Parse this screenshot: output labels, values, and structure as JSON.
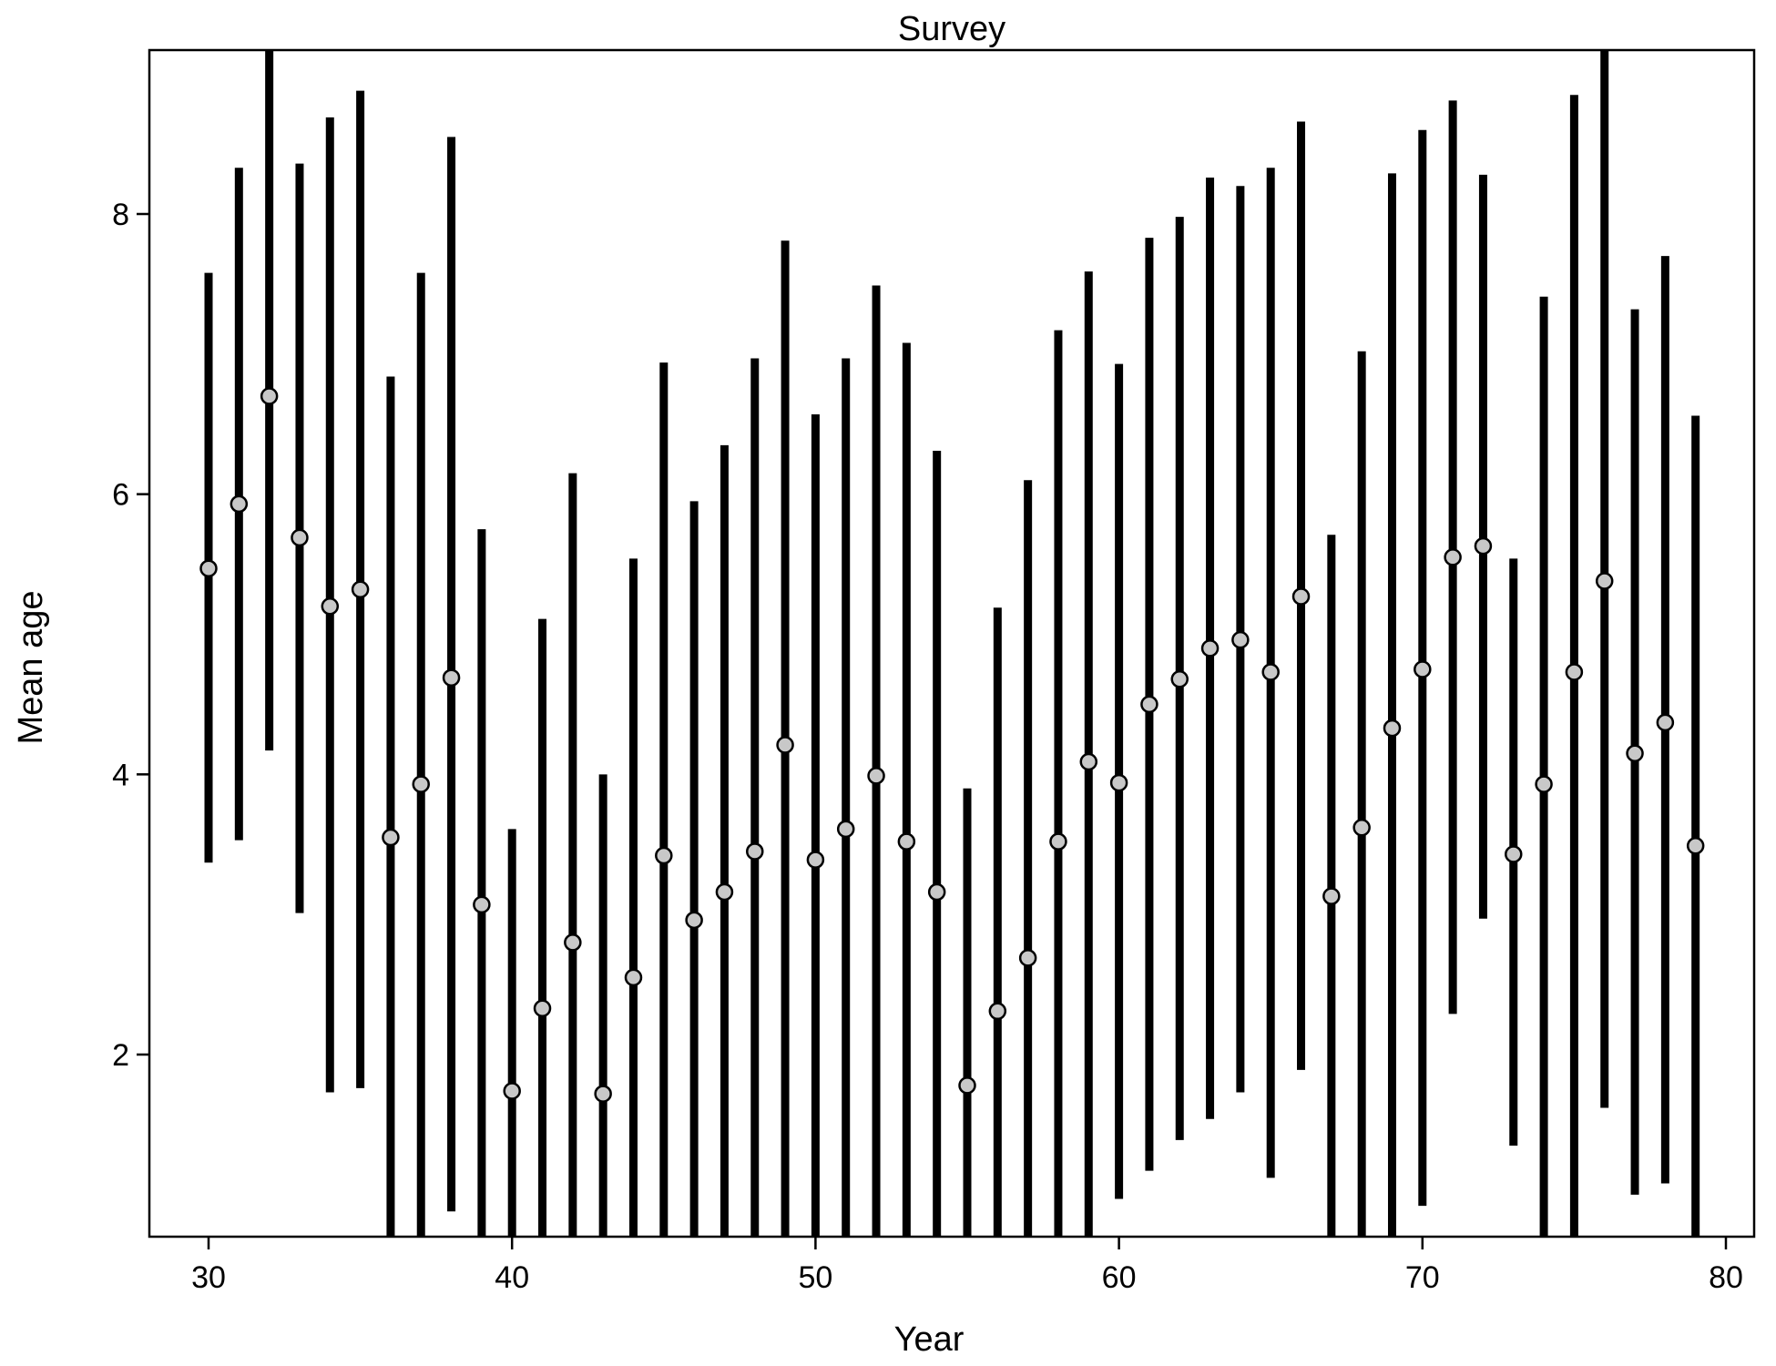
{
  "chart_data": {
    "type": "scatter",
    "title": "Survey",
    "xlabel": "Year",
    "ylabel": "Mean age",
    "xlim": [
      28,
      81
    ],
    "ylim": [
      0.7,
      9.2
    ],
    "x_ticks": [
      30,
      40,
      50,
      60,
      70,
      80
    ],
    "y_ticks": [
      2,
      4,
      6,
      8
    ],
    "grid": false,
    "legend": "none",
    "marker_fill": "#c8c8c8",
    "line_color": "#000000",
    "x": [
      30,
      31,
      32,
      33,
      34,
      35,
      36,
      37,
      38,
      39,
      40,
      41,
      42,
      43,
      44,
      45,
      46,
      47,
      48,
      49,
      50,
      51,
      52,
      53,
      54,
      55,
      56,
      57,
      58,
      59,
      60,
      61,
      62,
      63,
      64,
      65,
      66,
      67,
      68,
      69,
      70,
      71,
      72,
      73,
      74,
      75,
      76,
      77,
      78,
      79
    ],
    "y": [
      5.47,
      5.93,
      6.7,
      5.69,
      5.2,
      5.32,
      3.55,
      3.93,
      4.69,
      3.07,
      1.74,
      2.33,
      2.8,
      1.72,
      2.55,
      3.42,
      2.96,
      3.16,
      3.45,
      4.21,
      3.39,
      3.61,
      3.99,
      3.52,
      3.16,
      1.78,
      2.31,
      2.69,
      3.52,
      4.09,
      3.94,
      4.5,
      4.68,
      4.9,
      4.96,
      4.73,
      5.27,
      3.13,
      3.62,
      4.33,
      4.75,
      5.55,
      5.63,
      3.43,
      3.93,
      4.73,
      5.38,
      4.15,
      4.37,
      3.49
    ],
    "lower": [
      3.37,
      3.53,
      4.17,
      3.01,
      1.73,
      1.76,
      0.7,
      0.7,
      0.88,
      0.7,
      0.7,
      0.7,
      0.7,
      0.7,
      0.7,
      0.7,
      0.7,
      0.7,
      0.7,
      0.7,
      0.7,
      0.7,
      0.7,
      0.7,
      0.7,
      0.7,
      0.7,
      0.7,
      0.7,
      0.7,
      0.97,
      1.17,
      1.39,
      1.54,
      1.73,
      1.12,
      1.89,
      0.7,
      0.7,
      0.7,
      0.92,
      2.29,
      2.97,
      1.35,
      0.7,
      0.7,
      1.62,
      1.0,
      1.08,
      0.7
    ],
    "upper": [
      7.58,
      8.33,
      9.2,
      8.36,
      8.69,
      8.88,
      6.84,
      7.58,
      8.55,
      5.75,
      3.61,
      5.11,
      6.15,
      4.0,
      5.54,
      6.94,
      5.95,
      6.35,
      6.97,
      7.81,
      6.57,
      6.97,
      7.49,
      7.08,
      6.31,
      3.9,
      5.19,
      6.1,
      7.17,
      7.59,
      6.93,
      7.83,
      7.98,
      8.26,
      8.2,
      8.33,
      8.66,
      5.71,
      7.02,
      8.29,
      8.6,
      8.81,
      8.28,
      5.54,
      7.41,
      8.85,
      9.2,
      7.32,
      7.7,
      6.56
    ]
  }
}
